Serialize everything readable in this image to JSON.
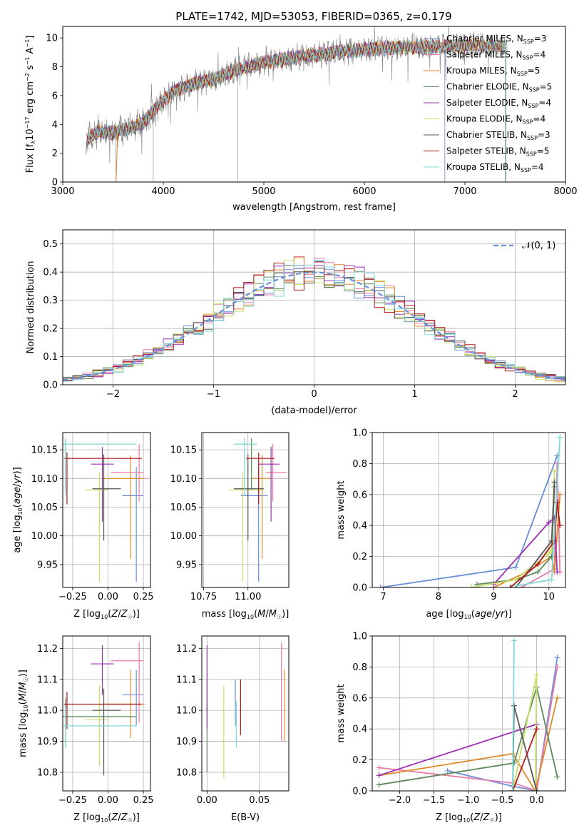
{
  "figure_title": "PLATE=1742, MJD=53053, FIBERID=0365, z=0.179",
  "colors": {
    "chabrier_miles": "#6a8fd8",
    "salpeter_miles": "#e87aa8",
    "kroupa_miles": "#e08a2a",
    "chabrier_elodie": "#5c8a5c",
    "salpeter_elodie": "#9b2fb0",
    "kroupa_elodie": "#c8e06a",
    "chabrier_stelib": "#555555",
    "salpeter_stelib": "#b01818",
    "kroupa_stelib": "#7fd8d8",
    "data": "#808080",
    "normal": "#6a8fd8"
  },
  "chart_data": [
    {
      "type": "line",
      "panel": "spectrum",
      "title": "PLATE=1742, MJD=53053, FIBERID=0365, z=0.179",
      "xlabel": "wavelength [Angstrom, rest frame]",
      "ylabel": "Flux [f_λ 10^-17 erg cm^-2 s^-1 A^-1]",
      "xlim": [
        3000,
        8000
      ],
      "ylim": [
        0,
        10.8
      ],
      "xticks": [
        "3000",
        "4000",
        "5000",
        "6000",
        "7000",
        "8000"
      ],
      "yticks": [
        "0",
        "2",
        "4",
        "6",
        "8",
        "10"
      ],
      "legend_position": "upper right",
      "series": [
        {
          "name": "Chabrier MILES, N_SSP=3",
          "color_key": "chabrier_miles"
        },
        {
          "name": "Salpeter MILES, N_SSP=4",
          "color_key": "salpeter_miles"
        },
        {
          "name": "Kroupa MILES, N_SSP=5",
          "color_key": "kroupa_miles"
        },
        {
          "name": "Chabrier ELODIE, N_SSP=5",
          "color_key": "chabrier_elodie"
        },
        {
          "name": "Salpeter ELODIE, N_SSP=4",
          "color_key": "salpeter_elodie"
        },
        {
          "name": "Kroupa ELODIE, N_SSP=4",
          "color_key": "kroupa_elodie"
        },
        {
          "name": "Chabrier STELIB, N_SSP=3",
          "color_key": "chabrier_stelib"
        },
        {
          "name": "Salpeter STELIB, N_SSP=5",
          "color_key": "salpeter_stelib"
        },
        {
          "name": "Kroupa STELIB, N_SSP=4",
          "color_key": "kroupa_stelib"
        }
      ],
      "continuum": {
        "x": [
          3230,
          3350,
          3500,
          3650,
          3800,
          3950,
          4100,
          4300,
          4500,
          4700,
          5000,
          5300,
          5600,
          6000,
          6400,
          6800,
          7100,
          7400
        ],
        "y": [
          2.9,
          3.5,
          3.4,
          3.7,
          4.1,
          5.3,
          6.3,
          6.8,
          7.1,
          7.7,
          8.3,
          8.6,
          8.9,
          9.2,
          9.35,
          9.4,
          9.45,
          9.4
        ]
      },
      "model_end_wavelengths": [
        6800,
        7400,
        7400,
        7400,
        7400,
        7400,
        7400,
        7400,
        7400
      ]
    },
    {
      "type": "step",
      "panel": "residuals",
      "xlabel": "(data-model)/error",
      "ylabel": "Normed distribution",
      "xlim": [
        -2.5,
        2.5
      ],
      "ylim": [
        0,
        0.55
      ],
      "xticks": [
        "−2",
        "−1",
        "0",
        "1",
        "2"
      ],
      "yticks": [
        "0.0",
        "0.1",
        "0.2",
        "0.3",
        "0.4",
        "0.5"
      ],
      "legend_position": "upper right",
      "reference_curve": {
        "name": "𝒩(0, 1)",
        "mean": 0,
        "sigma": 1
      },
      "bin_width": 0.1
    },
    {
      "type": "scatter",
      "panel": "age_vs_metallicity",
      "xlabel": "Z [log10(Z/Z☉)]",
      "ylabel": "age [log10(age/yr)]",
      "xlim": [
        -0.32,
        0.3
      ],
      "ylim": [
        9.91,
        10.18
      ],
      "xticks": [
        "−0.25",
        "0.00",
        "0.25"
      ],
      "yticks": [
        "9.95",
        "10.00",
        "10.05",
        "10.10",
        "10.15"
      ],
      "points": [
        {
          "color_key": "chabrier_miles",
          "x": 0.2,
          "xerr": [
            0.1,
            0.05
          ],
          "y": 10.07,
          "yerr": [
            0.15,
            0.05
          ]
        },
        {
          "color_key": "salpeter_miles",
          "x": 0.22,
          "xerr": [
            0.2,
            0.03
          ],
          "y": 10.11,
          "yerr": [
            0.05,
            0.05
          ]
        },
        {
          "color_key": "kroupa_miles",
          "x": 0.16,
          "xerr": [
            0.2,
            0.1
          ],
          "y": 10.1,
          "yerr": [
            0.14,
            0.04
          ]
        },
        {
          "color_key": "chabrier_elodie",
          "x": -0.3,
          "xerr": [
            0.02,
            0.5
          ],
          "y": 10.16,
          "yerr": [
            0.08,
            0.01
          ]
        },
        {
          "color_key": "salpeter_elodie",
          "x": -0.04,
          "xerr": [
            0.08,
            0.08
          ],
          "y": 10.125,
          "yerr": [
            0.1,
            0.03
          ]
        },
        {
          "color_key": "kroupa_elodie",
          "x": -0.06,
          "xerr": [
            0.1,
            0.06
          ],
          "y": 10.08,
          "yerr": [
            0.16,
            0.03
          ]
        },
        {
          "color_key": "chabrier_stelib",
          "x": -0.03,
          "xerr": [
            0.08,
            0.12
          ],
          "y": 10.082,
          "yerr": [
            0.09,
            0.06
          ]
        },
        {
          "color_key": "salpeter_stelib",
          "x": -0.29,
          "xerr": [
            0.02,
            0.53
          ],
          "y": 10.135,
          "yerr": [
            0.08,
            0.01
          ]
        },
        {
          "color_key": "kroupa_stelib",
          "x": -0.3,
          "xerr": [
            0.02,
            0.5
          ],
          "y": 10.16,
          "yerr": [
            0.09,
            0.01
          ]
        }
      ]
    },
    {
      "type": "scatter",
      "panel": "age_vs_mass",
      "xlabel": "mass [log10(M/M☉)]",
      "ylabel": "",
      "xlim": [
        10.74,
        11.23
      ],
      "ylim": [
        9.91,
        10.18
      ],
      "xticks": [
        "10.75",
        "11.00"
      ],
      "yticks": [
        "9.95",
        "10.00",
        "10.05",
        "10.10",
        "10.15"
      ],
      "points": [
        {
          "color_key": "chabrier_miles",
          "x": 11.06,
          "xerr": [
            0.1,
            0.05
          ],
          "y": 10.07,
          "yerr": [
            0.15,
            0.05
          ]
        },
        {
          "color_key": "salpeter_miles",
          "x": 11.14,
          "xerr": [
            0.04,
            0.08
          ],
          "y": 10.11,
          "yerr": [
            0.05,
            0.05
          ]
        },
        {
          "color_key": "kroupa_miles",
          "x": 11.08,
          "xerr": [
            0.06,
            0.05
          ],
          "y": 10.1,
          "yerr": [
            0.14,
            0.04
          ]
        },
        {
          "color_key": "chabrier_elodie",
          "x": 11.02,
          "xerr": [
            0.1,
            0.03
          ],
          "y": 10.16,
          "yerr": [
            0.08,
            0.01
          ]
        },
        {
          "color_key": "salpeter_elodie",
          "x": 11.13,
          "xerr": [
            0.07,
            0.05
          ],
          "y": 10.125,
          "yerr": [
            0.1,
            0.03
          ]
        },
        {
          "color_key": "kroupa_elodie",
          "x": 10.97,
          "xerr": [
            0.08,
            0.11
          ],
          "y": 10.08,
          "yerr": [
            0.16,
            0.03
          ]
        },
        {
          "color_key": "chabrier_stelib",
          "x": 11.0,
          "xerr": [
            0.08,
            0.09
          ],
          "y": 10.082,
          "yerr": [
            0.09,
            0.06
          ]
        },
        {
          "color_key": "salpeter_stelib",
          "x": 11.06,
          "xerr": [
            0.07,
            0.09
          ],
          "y": 10.135,
          "yerr": [
            0.08,
            0.01
          ]
        },
        {
          "color_key": "kroupa_stelib",
          "x": 10.98,
          "xerr": [
            0.06,
            0.07
          ],
          "y": 10.16,
          "yerr": [
            0.09,
            0.01
          ]
        }
      ]
    },
    {
      "type": "line",
      "panel": "mass_weight_vs_age",
      "xlabel": "age [log10(age/yr)]",
      "ylabel": "mass weight",
      "xlim": [
        6.8,
        10.3
      ],
      "ylim": [
        0,
        1.0
      ],
      "xticks": [
        "7",
        "8",
        "9",
        "10"
      ],
      "yticks": [
        "0.0",
        "0.2",
        "0.4",
        "0.6",
        "0.8",
        "1.0"
      ],
      "series": [
        {
          "color_key": "chabrier_miles",
          "x": [
            6.95,
            9.4,
            10.15
          ],
          "y": [
            0.0,
            0.13,
            0.85
          ]
        },
        {
          "color_key": "salpeter_miles",
          "x": [
            9.5,
            10.1,
            10.15,
            10.2
          ],
          "y": [
            0.0,
            0.12,
            0.8,
            0.1
          ]
        },
        {
          "color_key": "kroupa_miles",
          "x": [
            9.0,
            9.6,
            10.05,
            10.1,
            10.2
          ],
          "y": [
            0.0,
            0.1,
            0.2,
            0.1,
            0.6
          ]
        },
        {
          "color_key": "chabrier_elodie",
          "x": [
            8.7,
            9.4,
            9.8,
            10.05,
            10.1
          ],
          "y": [
            0.02,
            0.05,
            0.1,
            0.2,
            0.65
          ]
        },
        {
          "color_key": "salpeter_elodie",
          "x": [
            9.0,
            10.0,
            10.1,
            10.15
          ],
          "y": [
            0.02,
            0.42,
            0.45,
            0.1
          ]
        },
        {
          "color_key": "kroupa_elodie",
          "x": [
            8.6,
            9.4,
            10.0,
            10.05,
            10.1
          ],
          "y": [
            0.0,
            0.05,
            0.22,
            0.24,
            0.75
          ]
        },
        {
          "color_key": "chabrier_stelib",
          "x": [
            9.4,
            10.05,
            10.1
          ],
          "y": [
            0.0,
            0.3,
            0.68
          ]
        },
        {
          "color_key": "salpeter_stelib",
          "x": [
            9.3,
            9.8,
            10.1,
            10.15,
            10.2
          ],
          "y": [
            0.0,
            0.15,
            0.3,
            0.55,
            0.4
          ]
        },
        {
          "color_key": "kroupa_stelib",
          "x": [
            9.4,
            10.05,
            10.2
          ],
          "y": [
            0.01,
            0.05,
            0.97
          ]
        }
      ]
    },
    {
      "type": "scatter",
      "panel": "mass_vs_metallicity",
      "xlabel": "Z [log10(Z/Z☉)]",
      "ylabel": "mass [log10(M/M☉)]",
      "xlim": [
        -0.32,
        0.3
      ],
      "ylim": [
        10.74,
        11.24
      ],
      "xticks": [
        "−0.25",
        "0.00",
        "0.25"
      ],
      "yticks": [
        "10.8",
        "10.9",
        "11.0",
        "11.1",
        "11.2"
      ],
      "points": [
        {
          "color_key": "chabrier_miles",
          "x": 0.2,
          "xerr": [
            0.1,
            0.05
          ],
          "y": 11.05,
          "yerr": [
            0.1,
            0.08
          ]
        },
        {
          "color_key": "salpeter_miles",
          "x": 0.22,
          "xerr": [
            0.2,
            0.03
          ],
          "y": 11.16,
          "yerr": [
            0.2,
            0.06
          ]
        },
        {
          "color_key": "kroupa_miles",
          "x": 0.16,
          "xerr": [
            0.2,
            0.1
          ],
          "y": 11.02,
          "yerr": [
            0.11,
            0.11
          ]
        },
        {
          "color_key": "chabrier_elodie",
          "x": -0.3,
          "xerr": [
            0.02,
            0.5
          ],
          "y": 10.98,
          "yerr": [
            0.1,
            0.06
          ]
        },
        {
          "color_key": "salpeter_elodie",
          "x": -0.04,
          "xerr": [
            0.08,
            0.08
          ],
          "y": 11.15,
          "yerr": [
            0.1,
            0.06
          ]
        },
        {
          "color_key": "kroupa_elodie",
          "x": -0.06,
          "xerr": [
            0.1,
            0.06
          ],
          "y": 10.97,
          "yerr": [
            0.15,
            0.11
          ]
        },
        {
          "color_key": "chabrier_stelib",
          "x": -0.03,
          "xerr": [
            0.08,
            0.12
          ],
          "y": 11.0,
          "yerr": [
            0.21,
            0.07
          ]
        },
        {
          "color_key": "salpeter_stelib",
          "x": -0.29,
          "xerr": [
            0.02,
            0.53
          ],
          "y": 11.02,
          "yerr": [
            0.08,
            0.04
          ]
        },
        {
          "color_key": "kroupa_stelib",
          "x": -0.3,
          "xerr": [
            0.02,
            0.5
          ],
          "y": 10.95,
          "yerr": [
            0.07,
            0.06
          ]
        }
      ]
    },
    {
      "type": "scatter",
      "panel": "mass_vs_ebv",
      "xlabel": "E(B-V)",
      "ylabel": "",
      "xlim": [
        -0.005,
        0.078
      ],
      "ylim": [
        10.74,
        11.24
      ],
      "xticks": [
        "0.00",
        "0.05"
      ],
      "yticks": [
        "10.8",
        "10.9",
        "11.0",
        "11.1",
        "11.2"
      ],
      "points": [
        {
          "color_key": "chabrier_miles",
          "x": 0.027,
          "y": 11.03,
          "yerr": [
            0.08,
            0.07
          ]
        },
        {
          "color_key": "salpeter_miles",
          "x": 0.071,
          "y": 11.1,
          "yerr": [
            0.2,
            0.12
          ]
        },
        {
          "color_key": "kroupa_miles",
          "x": 0.074,
          "y": 11.03,
          "yerr": [
            0.13,
            0.1
          ]
        },
        {
          "color_key": "chabrier_elodie",
          "x": 0.0,
          "y": 11.0,
          "yerr": [
            0.2,
            0.1
          ]
        },
        {
          "color_key": "salpeter_elodie",
          "x": 0.0,
          "y": 11.08,
          "yerr": [
            0.14,
            0.13
          ]
        },
        {
          "color_key": "kroupa_elodie",
          "x": 0.016,
          "y": 10.93,
          "yerr": [
            0.15,
            0.15
          ]
        },
        {
          "color_key": "chabrier_stelib",
          "x": 0.0,
          "y": 11.0,
          "yerr": [
            0.01,
            0.01
          ]
        },
        {
          "color_key": "salpeter_stelib",
          "x": 0.032,
          "y": 11.01,
          "yerr": [
            0.09,
            0.09
          ]
        },
        {
          "color_key": "kroupa_stelib",
          "x": 0.028,
          "y": 10.96,
          "yerr": [
            0.08,
            0.07
          ]
        }
      ]
    },
    {
      "type": "line",
      "panel": "mass_weight_vs_metallicity",
      "xlabel": "Z [log10(Z/Z☉)]",
      "ylabel": "mass weight",
      "xlim": [
        -2.4,
        0.42
      ],
      "ylim": [
        0,
        1.0
      ],
      "xticks": [
        "−2.0",
        "−1.5",
        "−1.0",
        "−0.5",
        "0.0"
      ],
      "yticks": [
        "0.0",
        "0.2",
        "0.4",
        "0.6",
        "0.8",
        "1.0"
      ],
      "series": [
        {
          "color_key": "chabrier_miles",
          "x": [
            -1.3,
            -0.35,
            0.0,
            0.3
          ],
          "y": [
            0.13,
            0.03,
            0.0,
            0.86
          ]
        },
        {
          "color_key": "salpeter_miles",
          "x": [
            -2.3,
            -0.33,
            0.0,
            0.3
          ],
          "y": [
            0.15,
            0.05,
            0.0,
            0.8
          ]
        },
        {
          "color_key": "kroupa_miles",
          "x": [
            -2.3,
            -0.35,
            -0.02,
            0.3
          ],
          "y": [
            0.1,
            0.24,
            0.0,
            0.6
          ]
        },
        {
          "color_key": "chabrier_elodie",
          "x": [
            -2.3,
            -0.33,
            0.0,
            0.3
          ],
          "y": [
            0.04,
            0.18,
            0.67,
            0.09
          ]
        },
        {
          "color_key": "salpeter_elodie",
          "x": [
            -2.3,
            0.0
          ],
          "y": [
            0.1,
            0.43
          ]
        },
        {
          "color_key": "kroupa_elodie",
          "x": [
            -0.35,
            0.0,
            -0.02
          ],
          "y": [
            0.0,
            0.75,
            0.0
          ]
        },
        {
          "color_key": "chabrier_stelib",
          "x": [
            -0.35,
            -0.33,
            0.0
          ],
          "y": [
            0.0,
            0.55,
            0.0
          ]
        },
        {
          "color_key": "salpeter_stelib",
          "x": [
            -0.35,
            0.0
          ],
          "y": [
            0.0,
            0.4
          ]
        },
        {
          "color_key": "kroupa_stelib",
          "x": [
            -0.35,
            -0.33
          ],
          "y": [
            0.0,
            0.97
          ]
        }
      ]
    }
  ]
}
